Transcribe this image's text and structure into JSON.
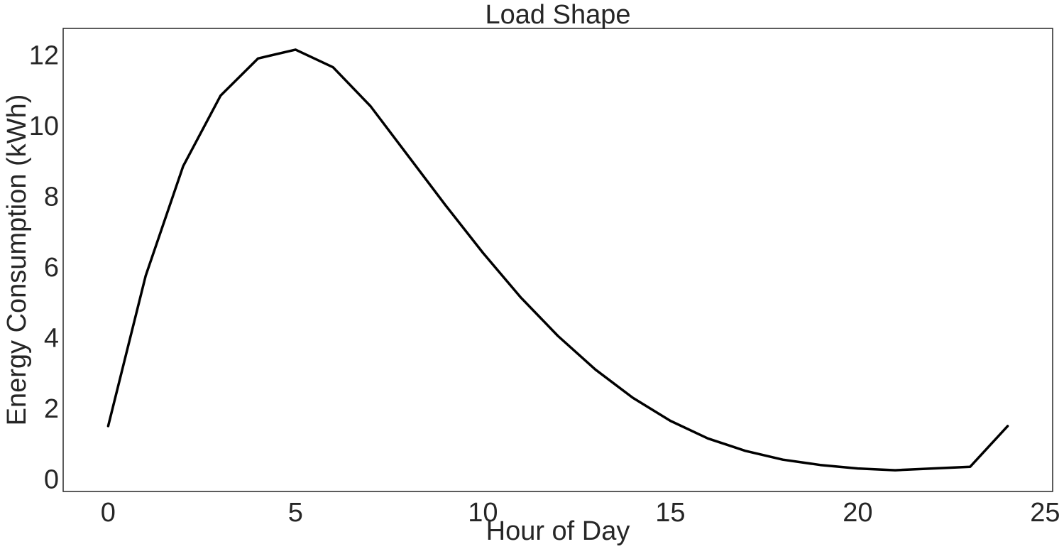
{
  "chart_data": {
    "type": "line",
    "title": "Load Shape",
    "xlabel": "Hour of Day",
    "ylabel": "Energy Consumption (kWh)",
    "xlim": [
      -1.2,
      25.2
    ],
    "ylim": [
      -0.35,
      12.75
    ],
    "xticks": [
      0,
      5,
      10,
      15,
      20,
      25
    ],
    "yticks": [
      0,
      2,
      4,
      6,
      8,
      10,
      12
    ],
    "xtick_labels": [
      "0",
      "5",
      "10",
      "15",
      "20",
      "25"
    ],
    "ytick_labels": [
      "0",
      "2",
      "4",
      "6",
      "8",
      "10",
      "12"
    ],
    "grid": false,
    "legend": "none",
    "series": [
      {
        "color": "#000000",
        "x": [
          0,
          1,
          2,
          3,
          4,
          5,
          6,
          7,
          8,
          9,
          10,
          11,
          12,
          13,
          14,
          15,
          16,
          17,
          18,
          19,
          20,
          21,
          22,
          23,
          24
        ],
        "y": [
          1.5,
          5.75,
          8.85,
          10.85,
          11.9,
          12.15,
          11.65,
          10.55,
          9.15,
          7.75,
          6.4,
          5.15,
          4.05,
          3.1,
          2.3,
          1.65,
          1.15,
          0.8,
          0.55,
          0.4,
          0.3,
          0.25,
          0.3,
          0.35,
          1.5
        ]
      }
    ]
  }
}
